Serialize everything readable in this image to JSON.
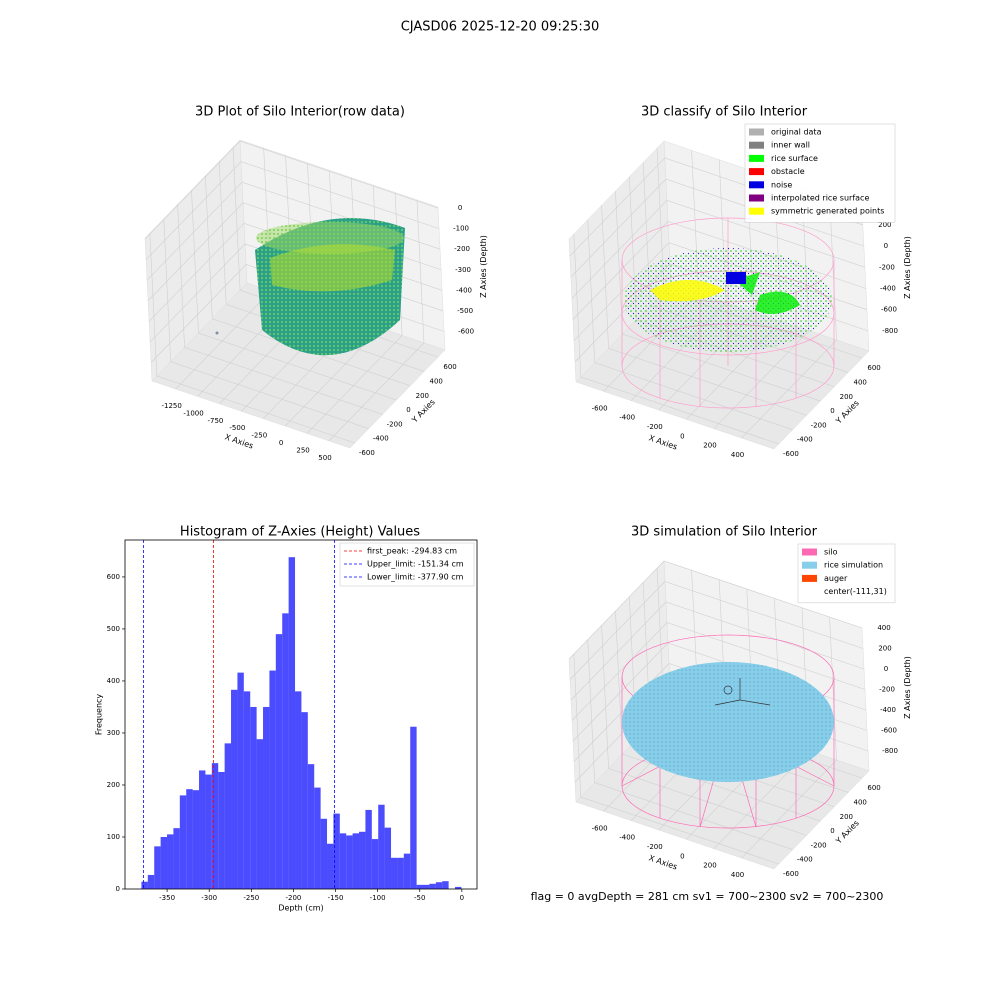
{
  "figure": {
    "title": "CJASD06 2025-12-20 09:25:30",
    "status": "flag = 0     avgDepth = 281 cm  sv1 = 700~2300  sv2 = 700~2300"
  },
  "chart_data": [
    {
      "type": "scatter3d",
      "title": "3D Plot of Silo Interior(row data)",
      "xlabel": "X Axies",
      "ylabel": "Y Axies",
      "zlabel": "Z Axies (Depth)",
      "xlim": [
        -1520,
        740
      ],
      "xticks": [
        -1250,
        -1000,
        -750,
        -500,
        -250,
        0,
        250,
        500
      ],
      "ylim": [
        -670,
        700
      ],
      "yticks": [
        -600,
        -400,
        -200,
        0,
        200,
        400,
        600
      ],
      "zlim": [
        -690,
        5
      ],
      "zticks": [
        -600,
        -500,
        -400,
        -300,
        -200,
        -100,
        0
      ],
      "grid": true
    },
    {
      "type": "scatter3d",
      "title": "3D classify of Silo Interior",
      "xlabel": "X Axies",
      "ylabel": "Y Axies",
      "zlabel": "Z Axies (Depth)",
      "xlim": [
        -800,
        635
      ],
      "xticks": [
        -600,
        -400,
        -200,
        0,
        200,
        400
      ],
      "ylim": [
        -670,
        700
      ],
      "yticks": [
        -600,
        -400,
        -200,
        0,
        200,
        400,
        600
      ],
      "zlim": [
        -990,
        360
      ],
      "zticks": [
        -800,
        -600,
        -400,
        -200,
        0,
        200
      ],
      "grid": true,
      "legend": [
        {
          "name": "original data",
          "color": "#b0b0b0"
        },
        {
          "name": "inner wall",
          "color": "#808080"
        },
        {
          "name": "rice surface",
          "color": "#00ff00"
        },
        {
          "name": "obstacle",
          "color": "#ff0000"
        },
        {
          "name": "noise",
          "color": "#0000e0"
        },
        {
          "name": "interpolated rice surface",
          "color": "#800080"
        },
        {
          "name": "symmetric generated points",
          "color": "#ffff00"
        }
      ]
    },
    {
      "type": "histogram",
      "title": "Histogram of Z-Axies (Height) Values",
      "xlabel": "Depth (cm)",
      "ylabel": "Frequency",
      "color": "#0000ff",
      "alpha": 0.7,
      "bins": [
        -380.5,
        -372.9,
        -365.3,
        -357.7,
        -350.1,
        -342.5,
        -334.9,
        -327.3,
        -319.7,
        -312.1,
        -304.5,
        -296.9,
        -289.3,
        -281.7,
        -274.1,
        -266.5,
        -258.9,
        -251.3,
        -243.7,
        -236.1,
        -228.5,
        -220.9,
        -213.3,
        -205.7,
        -198.1,
        -190.5,
        -182.9,
        -175.3,
        -167.7,
        -160.1,
        -152.5,
        -144.9,
        -137.3,
        -129.7,
        -122.1,
        -114.5,
        -106.9,
        -99.3,
        -91.7,
        -84.1,
        -76.5,
        -68.9,
        -61.3,
        -53.7,
        -46.1,
        -38.5,
        -30.9,
        -23.3,
        -15.7,
        -8.1,
        -0.5
      ],
      "values": [
        14,
        27,
        82,
        100,
        105,
        117,
        180,
        192,
        190,
        228,
        220,
        242,
        225,
        280,
        383,
        416,
        380,
        350,
        288,
        350,
        420,
        490,
        530,
        638,
        380,
        340,
        240,
        195,
        135,
        87,
        145,
        107,
        103,
        107,
        110,
        152,
        96,
        162,
        118,
        60,
        60,
        68,
        312,
        8,
        8,
        10,
        13,
        15,
        0,
        4
      ],
      "xlim": [
        -400,
        18
      ],
      "xticks": [
        -350,
        -300,
        -250,
        -200,
        -150,
        -100,
        -50,
        0
      ],
      "ylim": [
        0,
        671
      ],
      "yticks": [
        0,
        100,
        200,
        300,
        400,
        500,
        600
      ],
      "vlines": [
        {
          "value": -294.83,
          "label": "first_peak: -294.83 cm",
          "color": "#ff0000"
        },
        {
          "value": -151.34,
          "label": "Upper_limit: -151.34 cm",
          "color": "#0000ff"
        },
        {
          "value": -377.9,
          "label": "Lower_limit: -377.90 cm",
          "color": "#0000ff"
        }
      ],
      "legend_position": "upper right"
    },
    {
      "type": "scatter3d",
      "title": "3D simulation of Silo Interior",
      "xlabel": "X Axies",
      "ylabel": "Y Axies",
      "zlabel": "Z Axies (Depth)",
      "xlim": [
        -800,
        635
      ],
      "xticks": [
        -600,
        -400,
        -200,
        0,
        200,
        400
      ],
      "ylim": [
        -670,
        700
      ],
      "yticks": [
        -600,
        -400,
        -200,
        0,
        200,
        400,
        600
      ],
      "zlim": [
        -995,
        400
      ],
      "zticks": [
        -800,
        -600,
        -400,
        -200,
        0,
        200,
        400
      ],
      "grid": true,
      "legend": [
        {
          "name": "silo",
          "color": "#ff69b4"
        },
        {
          "name": "rice simulation",
          "color": "#87ceeb"
        },
        {
          "name": "auger",
          "color": "#ff4500"
        },
        {
          "name": "center(-111,31)"
        }
      ]
    }
  ]
}
